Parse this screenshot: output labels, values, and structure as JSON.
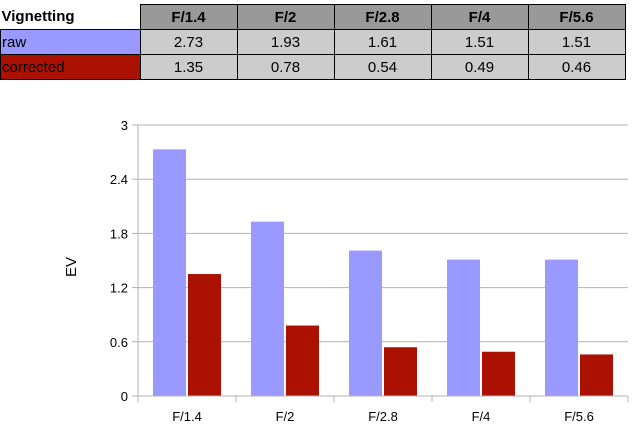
{
  "table": {
    "corner_label": "Vignetting",
    "headers": [
      "F/1.4",
      "F/2",
      "F/2.8",
      "F/4",
      "F/5.6"
    ],
    "rows": [
      {
        "label": "raw",
        "values": [
          "2.73",
          "1.93",
          "1.61",
          "1.51",
          "1.51"
        ]
      },
      {
        "label": "corrected",
        "values": [
          "1.35",
          "0.78",
          "0.54",
          "0.49",
          "0.46"
        ]
      }
    ]
  },
  "chart_data": {
    "type": "bar",
    "categories": [
      "F/1.4",
      "F/2",
      "F/2.8",
      "F/4",
      "F/5.6"
    ],
    "series": [
      {
        "values": [
          2.73,
          1.93,
          1.61,
          1.51,
          1.51
        ],
        "color": "#9999ff"
      },
      {
        "values": [
          1.35,
          0.78,
          0.54,
          0.49,
          0.46
        ],
        "color": "#aa1100"
      }
    ],
    "title": "",
    "xlabel": "",
    "ylabel": "EV",
    "ylim": [
      0,
      3
    ],
    "yticks": [
      "0",
      "0.6",
      "1.2",
      "1.8",
      "2.4",
      "3"
    ],
    "grid": true,
    "legend": "none"
  }
}
